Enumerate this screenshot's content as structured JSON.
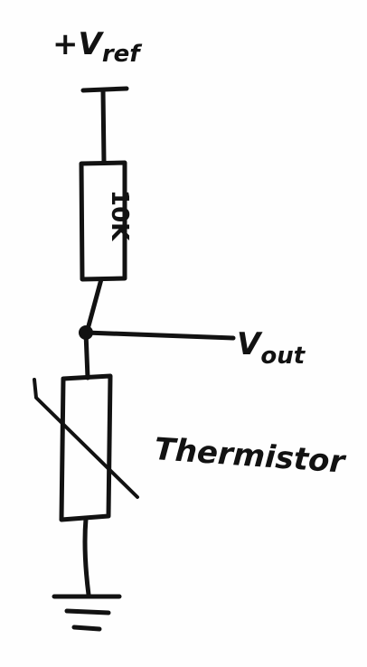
{
  "labels": {
    "supply": "+V",
    "supply_sub": "ref",
    "resistor_value": "10K",
    "output": "V",
    "output_sub": "out",
    "component": "Thermistor"
  },
  "colors": {
    "ink": "#121212",
    "paper": "#fefefe"
  },
  "icons": {
    "supply_rail": "supply-terminal-icon",
    "ground": "ground-symbol-icon",
    "junction": "junction-dot-icon"
  }
}
